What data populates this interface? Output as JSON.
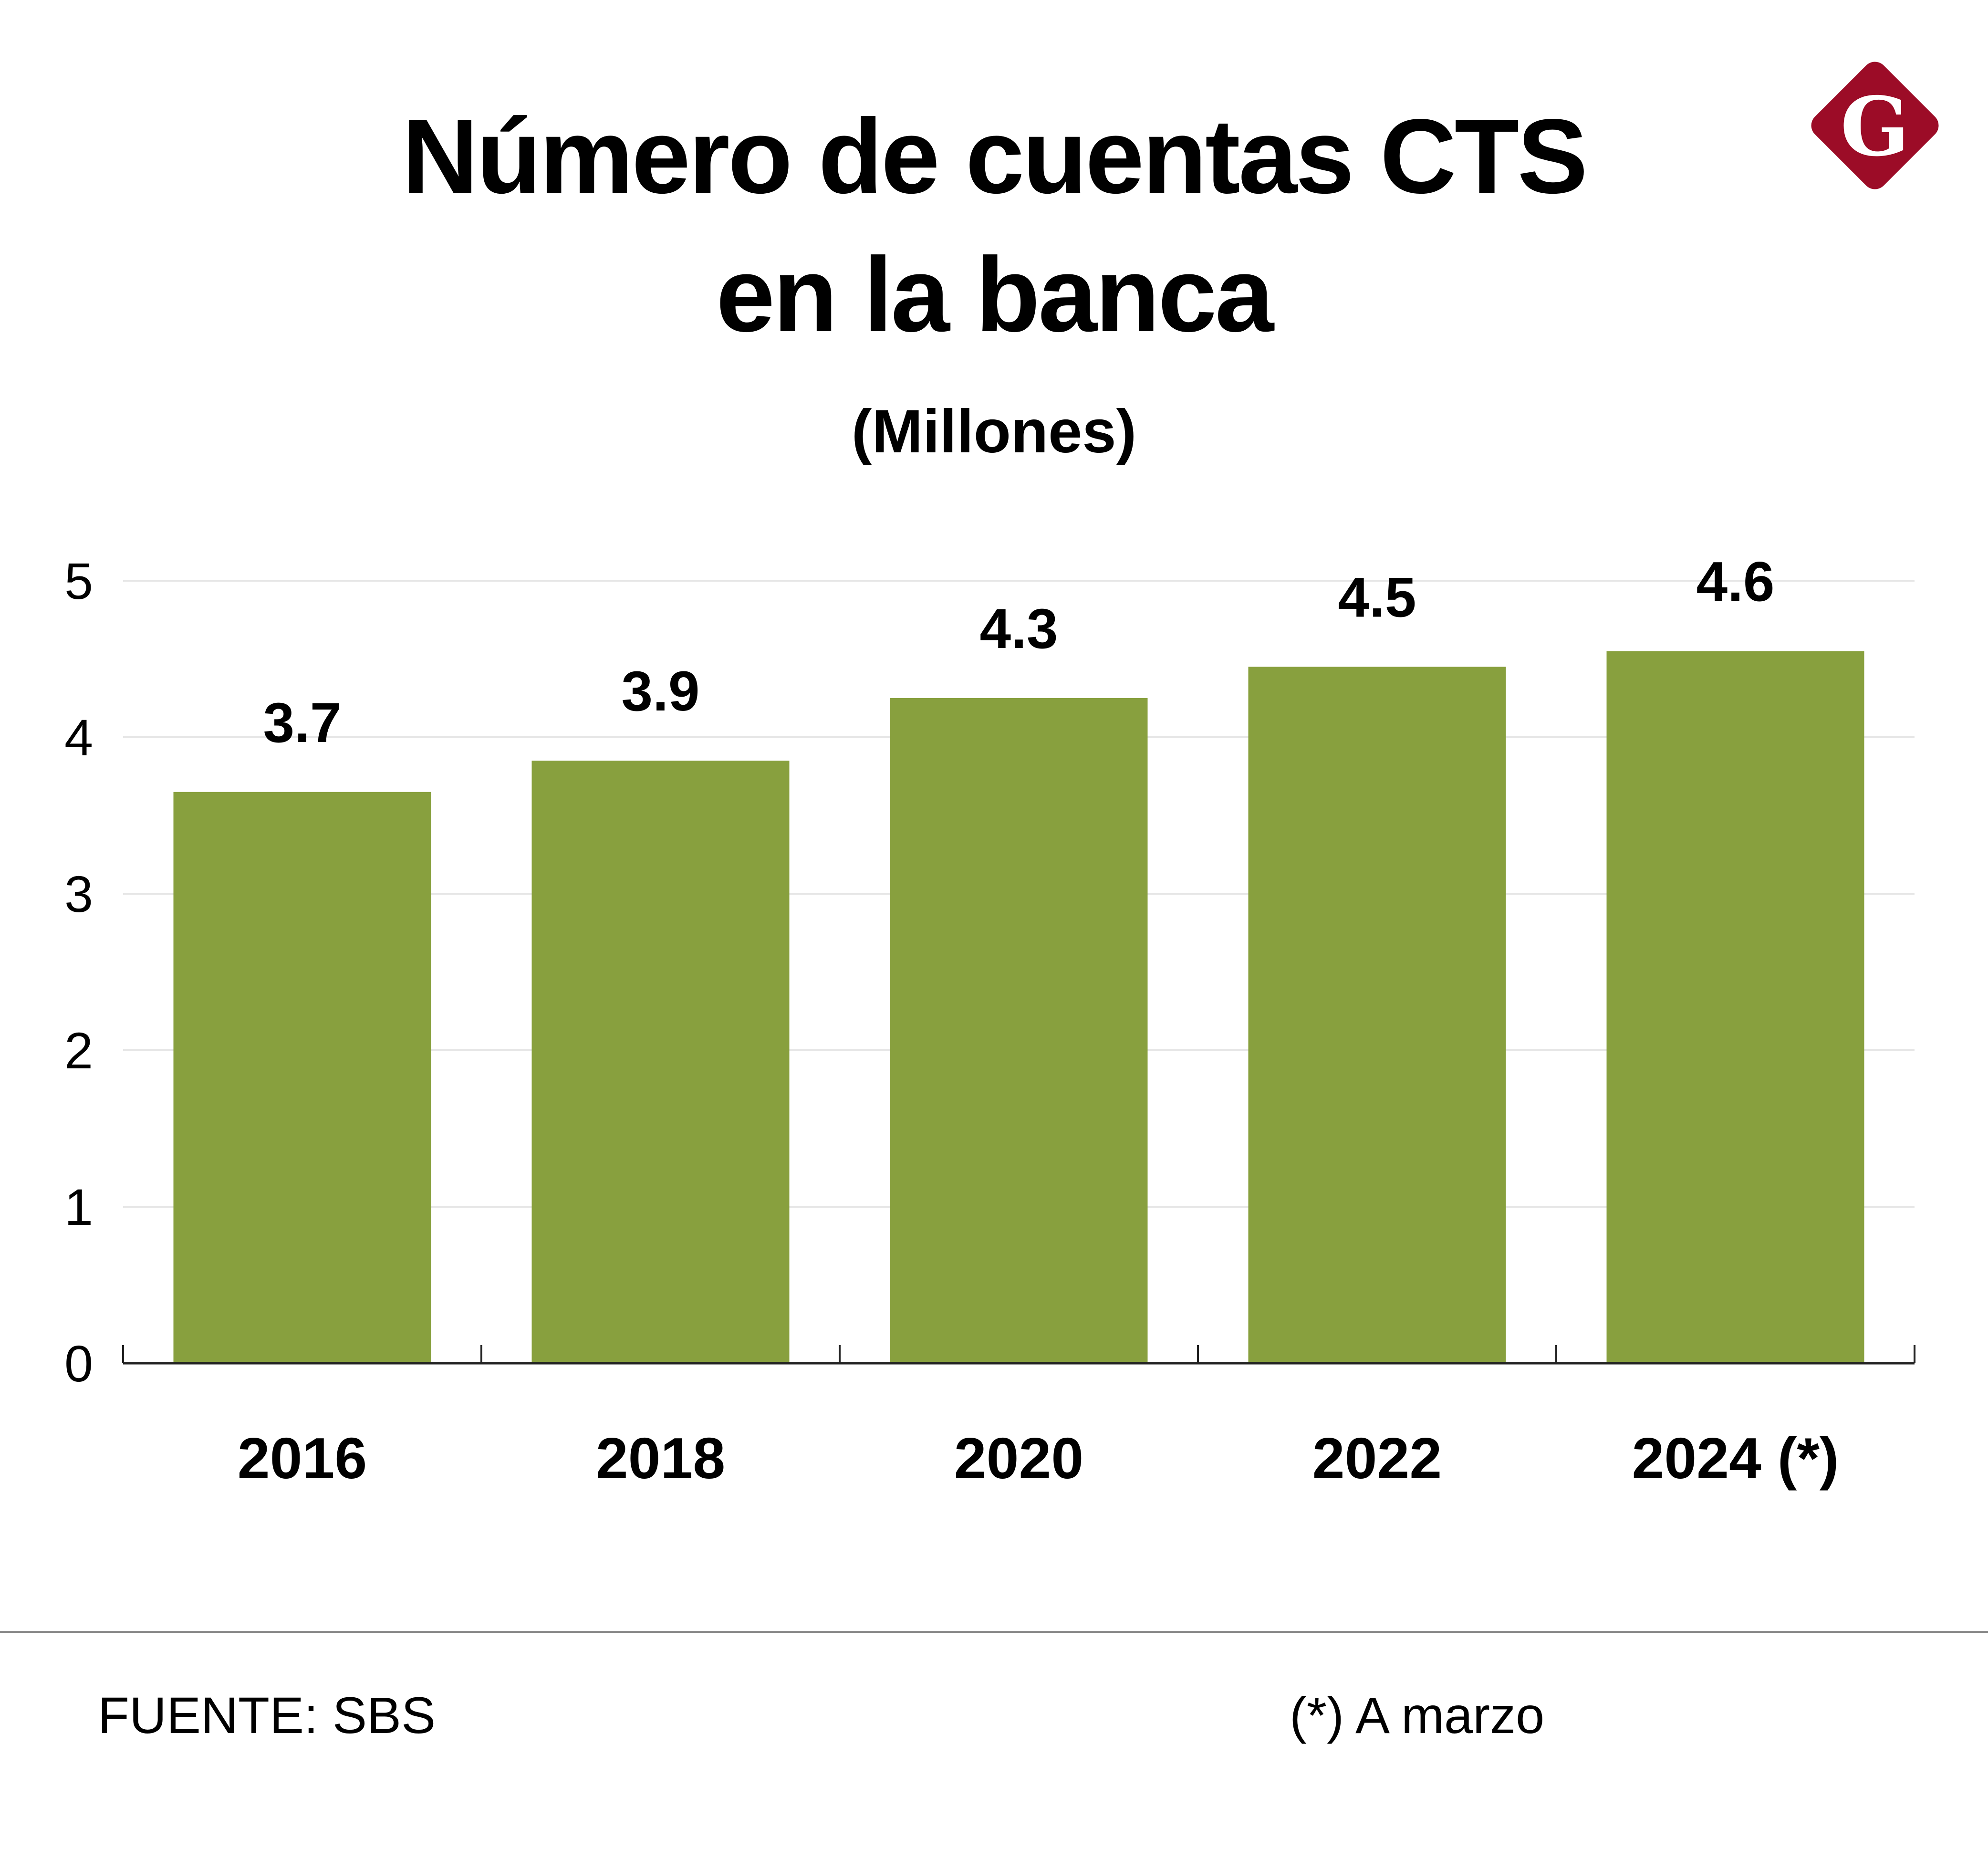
{
  "title_line1": "Número de cuentas CTS",
  "title_line2": "en la banca",
  "subtitle": "(Millones)",
  "logo_letter": "G",
  "colors": {
    "bar": "#88a03e",
    "logo": "#9c0c27",
    "axis": "#222222",
    "grid": "#e6e6e6",
    "text": "#000000"
  },
  "footer": {
    "source": "FUENTE: SBS",
    "note": "(*) A marzo"
  },
  "chart_data": {
    "type": "bar",
    "title": "Número de cuentas CTS en la banca",
    "subtitle": "(Millones)",
    "categories": [
      "2016",
      "2018",
      "2020",
      "2022",
      "2024 (*)"
    ],
    "values": [
      3.65,
      3.85,
      4.25,
      4.45,
      4.55
    ],
    "value_labels": [
      "3.7",
      "3.9",
      "4.3",
      "4.5",
      "4.6"
    ],
    "xlabel": "",
    "ylabel": "",
    "ylim": [
      0,
      5
    ],
    "yticks": [
      0,
      1,
      2,
      3,
      4,
      5
    ],
    "grid": true,
    "legend": "none"
  }
}
